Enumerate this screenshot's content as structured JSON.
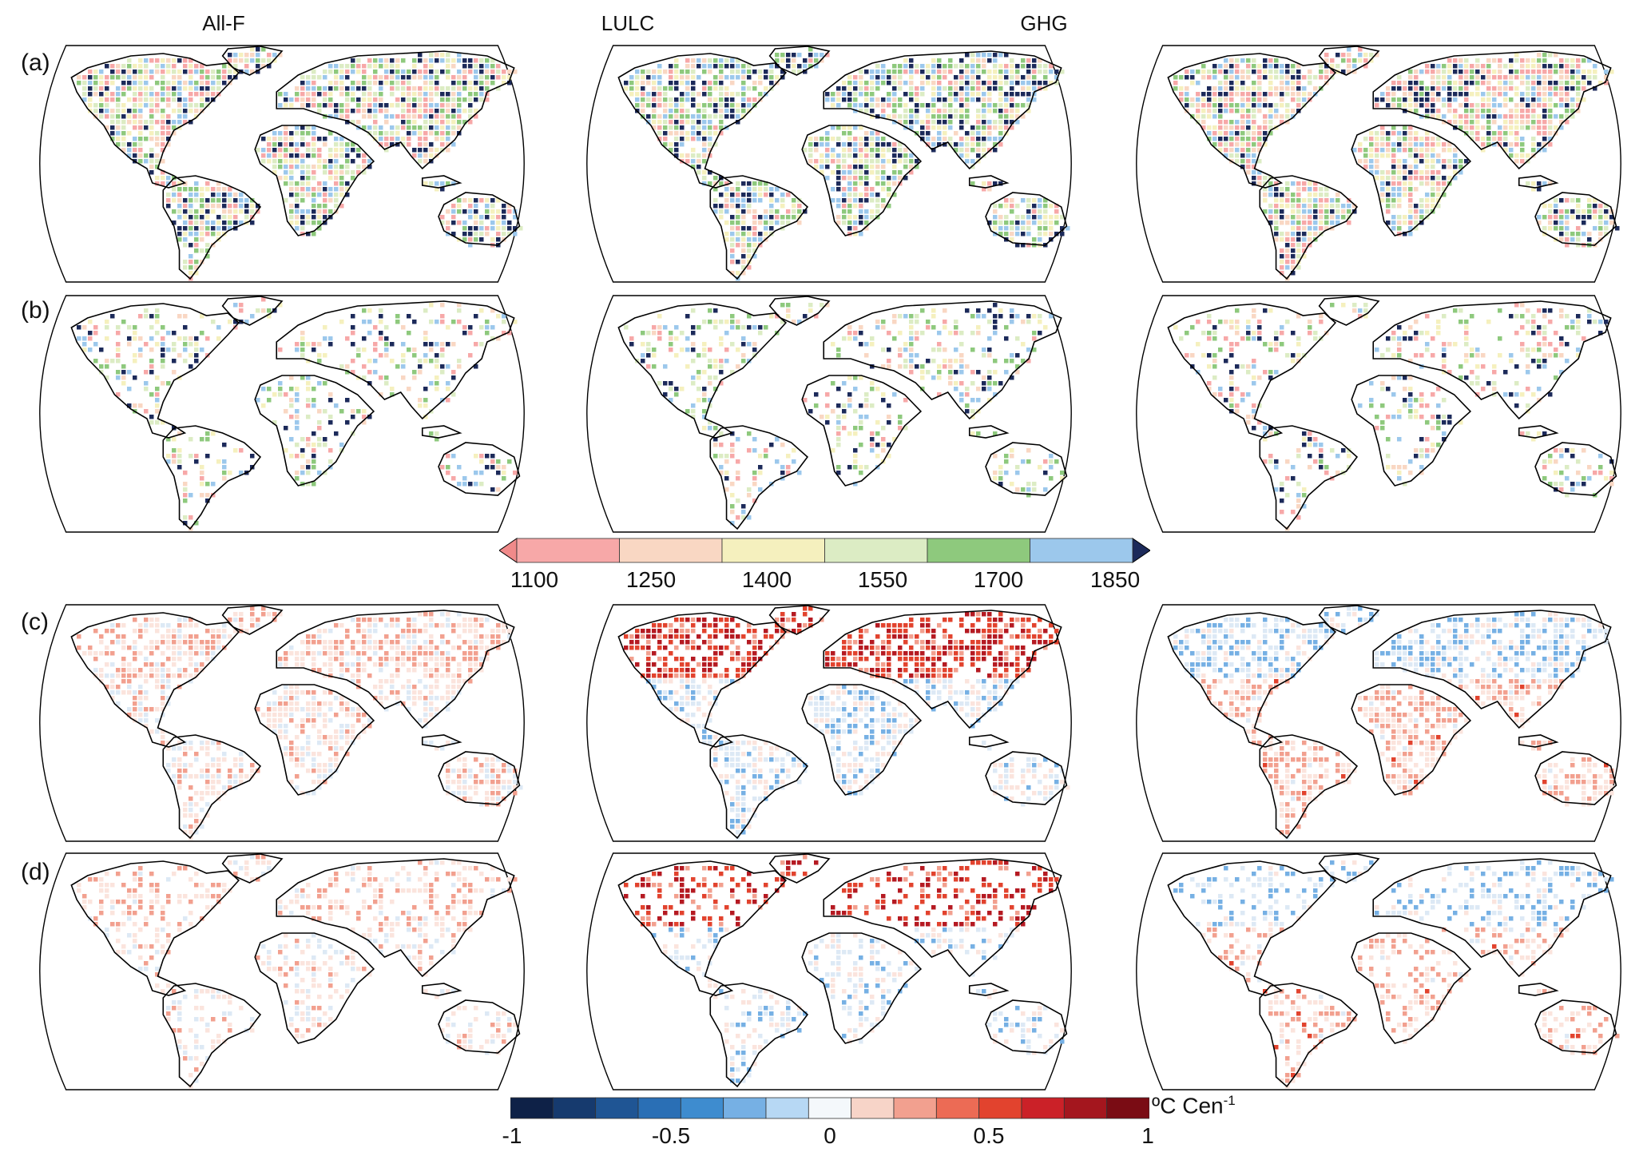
{
  "columns": [
    "All-F",
    "LULC",
    "GHG"
  ],
  "rows": [
    "(a)",
    "(b)",
    "(c)",
    "(d)"
  ],
  "colorbar_year": {
    "labels": [
      "1100",
      "1250",
      "1400",
      "1550",
      "1700",
      "1850"
    ],
    "colors": [
      "#f7a8a8",
      "#f9d7c3",
      "#f5f0be",
      "#dcecc4",
      "#8ec97d",
      "#9cc8ec"
    ],
    "under_color": "#f08a8a",
    "over_color": "#1c2a5a"
  },
  "colorbar_trend": {
    "labels": [
      "-1",
      "-0.5",
      "0",
      "0.5",
      "1"
    ],
    "unit": "ºC Cen",
    "unit_sup": "-1",
    "colors": [
      "#0e2147",
      "#163a6e",
      "#1f5594",
      "#2a6fb5",
      "#3e8ccf",
      "#76b0e4",
      "#b7d8f4",
      "#f4f8fb",
      "#f7d4c8",
      "#f2a08f",
      "#ec6b55",
      "#e2432e",
      "#cb2128",
      "#a4161e",
      "#7a0c14"
    ]
  },
  "palettes": {
    "year": [
      "#f7a8a8",
      "#f9d7c3",
      "#f5f0be",
      "#dcecc4",
      "#8ec97d",
      "#9cc8ec",
      "#1c2a5a"
    ],
    "trend": [
      "#163a6e",
      "#2a6fb5",
      "#76b0e4",
      "#dde9f5",
      "#fbe4dd",
      "#f2a08f",
      "#e2432e",
      "#b51a22",
      "#7a0c14"
    ]
  }
}
